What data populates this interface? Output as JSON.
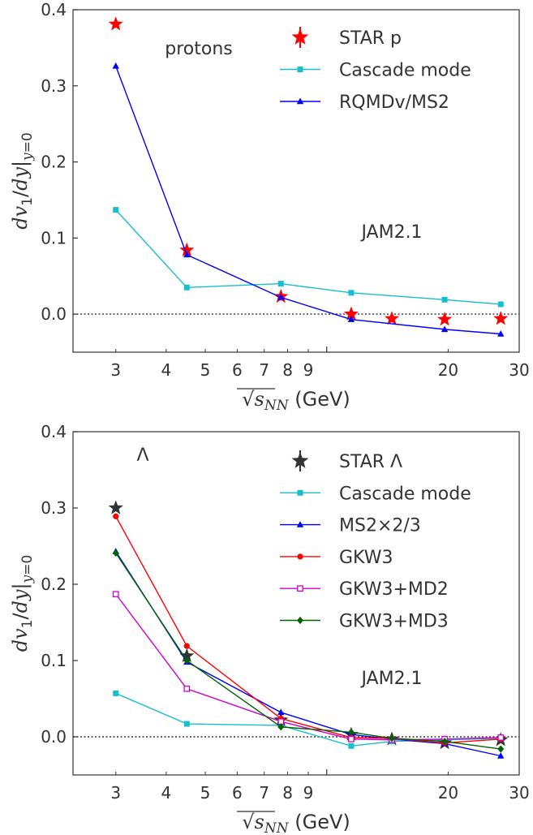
{
  "chart_data": [
    {
      "type": "line",
      "xlabel": "√sNN (GeV)",
      "ylabel": "dv1/dy|y=0",
      "xscale": "log",
      "xlim": [
        2.35,
        30
      ],
      "ylim": [
        -0.05,
        0.4
      ],
      "xticks": [
        3,
        4,
        5,
        6,
        7,
        8,
        9,
        20,
        30
      ],
      "xtick_labels": [
        "3",
        "4",
        "5",
        "6",
        "7",
        "8",
        "9",
        "20",
        "30"
      ],
      "yticks": [
        0.0,
        0.1,
        0.2,
        0.3,
        0.4
      ],
      "ytick_labels": [
        "0.0",
        "0.1",
        "0.2",
        "0.3",
        "0.4"
      ],
      "reference_line": 0.0,
      "annotations": [
        "protons",
        "JAM2.1"
      ],
      "legend_position": "top-right",
      "series": [
        {
          "name": "STAR p",
          "marker": "star",
          "color": "#ff0000",
          "style": "points",
          "x": [
            3.0,
            4.5,
            7.7,
            11.5,
            14.5,
            19.6,
            27.0
          ],
          "y": [
            0.381,
            0.084,
            0.023,
            0.0,
            -0.006,
            -0.007,
            -0.006
          ]
        },
        {
          "name": "Cascade mode",
          "marker": "square",
          "color": "#17becf",
          "style": "line",
          "x": [
            3.0,
            4.5,
            7.7,
            11.5,
            19.6,
            27.0
          ],
          "y": [
            0.137,
            0.035,
            0.04,
            0.028,
            0.019,
            0.013
          ]
        },
        {
          "name": "RQMDv/MS2",
          "marker": "triangle",
          "color": "#0000ff",
          "style": "line",
          "x": [
            3.0,
            4.5,
            7.7,
            11.5,
            19.6,
            27.0
          ],
          "y": [
            0.326,
            0.078,
            0.022,
            -0.007,
            -0.02,
            -0.026
          ]
        }
      ]
    },
    {
      "type": "line",
      "xlabel": "√sNN (GeV)",
      "ylabel": "dv1/dy|y=0",
      "xscale": "log",
      "xlim": [
        2.35,
        30
      ],
      "ylim": [
        -0.05,
        0.4
      ],
      "xticks": [
        3,
        4,
        5,
        6,
        7,
        8,
        9,
        20,
        30
      ],
      "xtick_labels": [
        "3",
        "4",
        "5",
        "6",
        "7",
        "8",
        "9",
        "20",
        "30"
      ],
      "yticks": [
        0.0,
        0.1,
        0.2,
        0.3,
        0.4
      ],
      "ytick_labels": [
        "0.0",
        "0.1",
        "0.2",
        "0.3",
        "0.4"
      ],
      "reference_line": 0.0,
      "annotations": [
        "Λ",
        "JAM2.1"
      ],
      "legend_position": "top-right",
      "series": [
        {
          "name": "STAR Λ",
          "marker": "star",
          "color": "#333333",
          "style": "points",
          "x": [
            3.0,
            4.5,
            7.7,
            11.5,
            14.5,
            19.6,
            27.0
          ],
          "y": [
            0.3,
            0.106,
            0.022,
            0.003,
            -0.003,
            -0.008,
            -0.004
          ]
        },
        {
          "name": "Cascade mode",
          "marker": "square",
          "color": "#17becf",
          "style": "line",
          "x": [
            3.0,
            4.5,
            7.7,
            11.5,
            14.5,
            19.6,
            27.0
          ],
          "y": [
            0.057,
            0.017,
            0.015,
            -0.012,
            -0.006,
            -0.004,
            -0.002
          ]
        },
        {
          "name": "MS2×2/3",
          "marker": "triangle",
          "color": "#0000ff",
          "style": "line",
          "x": [
            3.0,
            4.5,
            7.7,
            11.5,
            14.5,
            19.6,
            27.0
          ],
          "y": [
            0.243,
            0.098,
            0.032,
            0.003,
            -0.003,
            -0.009,
            -0.025
          ]
        },
        {
          "name": "GKW3",
          "marker": "circle",
          "color": "#ff0000",
          "style": "line",
          "x": [
            3.0,
            4.5,
            7.7,
            11.5,
            14.5,
            19.6,
            27.0
          ],
          "y": [
            0.289,
            0.119,
            0.024,
            -0.001,
            -0.002,
            -0.008,
            -0.003
          ]
        },
        {
          "name": "GKW3+MD2",
          "marker": "square-open",
          "color": "#cc00cc",
          "style": "line",
          "x": [
            3.0,
            4.5,
            7.7,
            11.5,
            14.5,
            19.6,
            27.0
          ],
          "y": [
            0.187,
            0.063,
            0.02,
            -0.003,
            -0.004,
            -0.003,
            -0.001
          ]
        },
        {
          "name": "GKW3+MD3",
          "marker": "diamond",
          "color": "#006400",
          "style": "line",
          "x": [
            3.0,
            4.5,
            7.7,
            11.5,
            14.5,
            19.6,
            27.0
          ],
          "y": [
            0.241,
            0.1,
            0.013,
            0.006,
            -0.002,
            -0.006,
            -0.016
          ]
        }
      ]
    }
  ]
}
